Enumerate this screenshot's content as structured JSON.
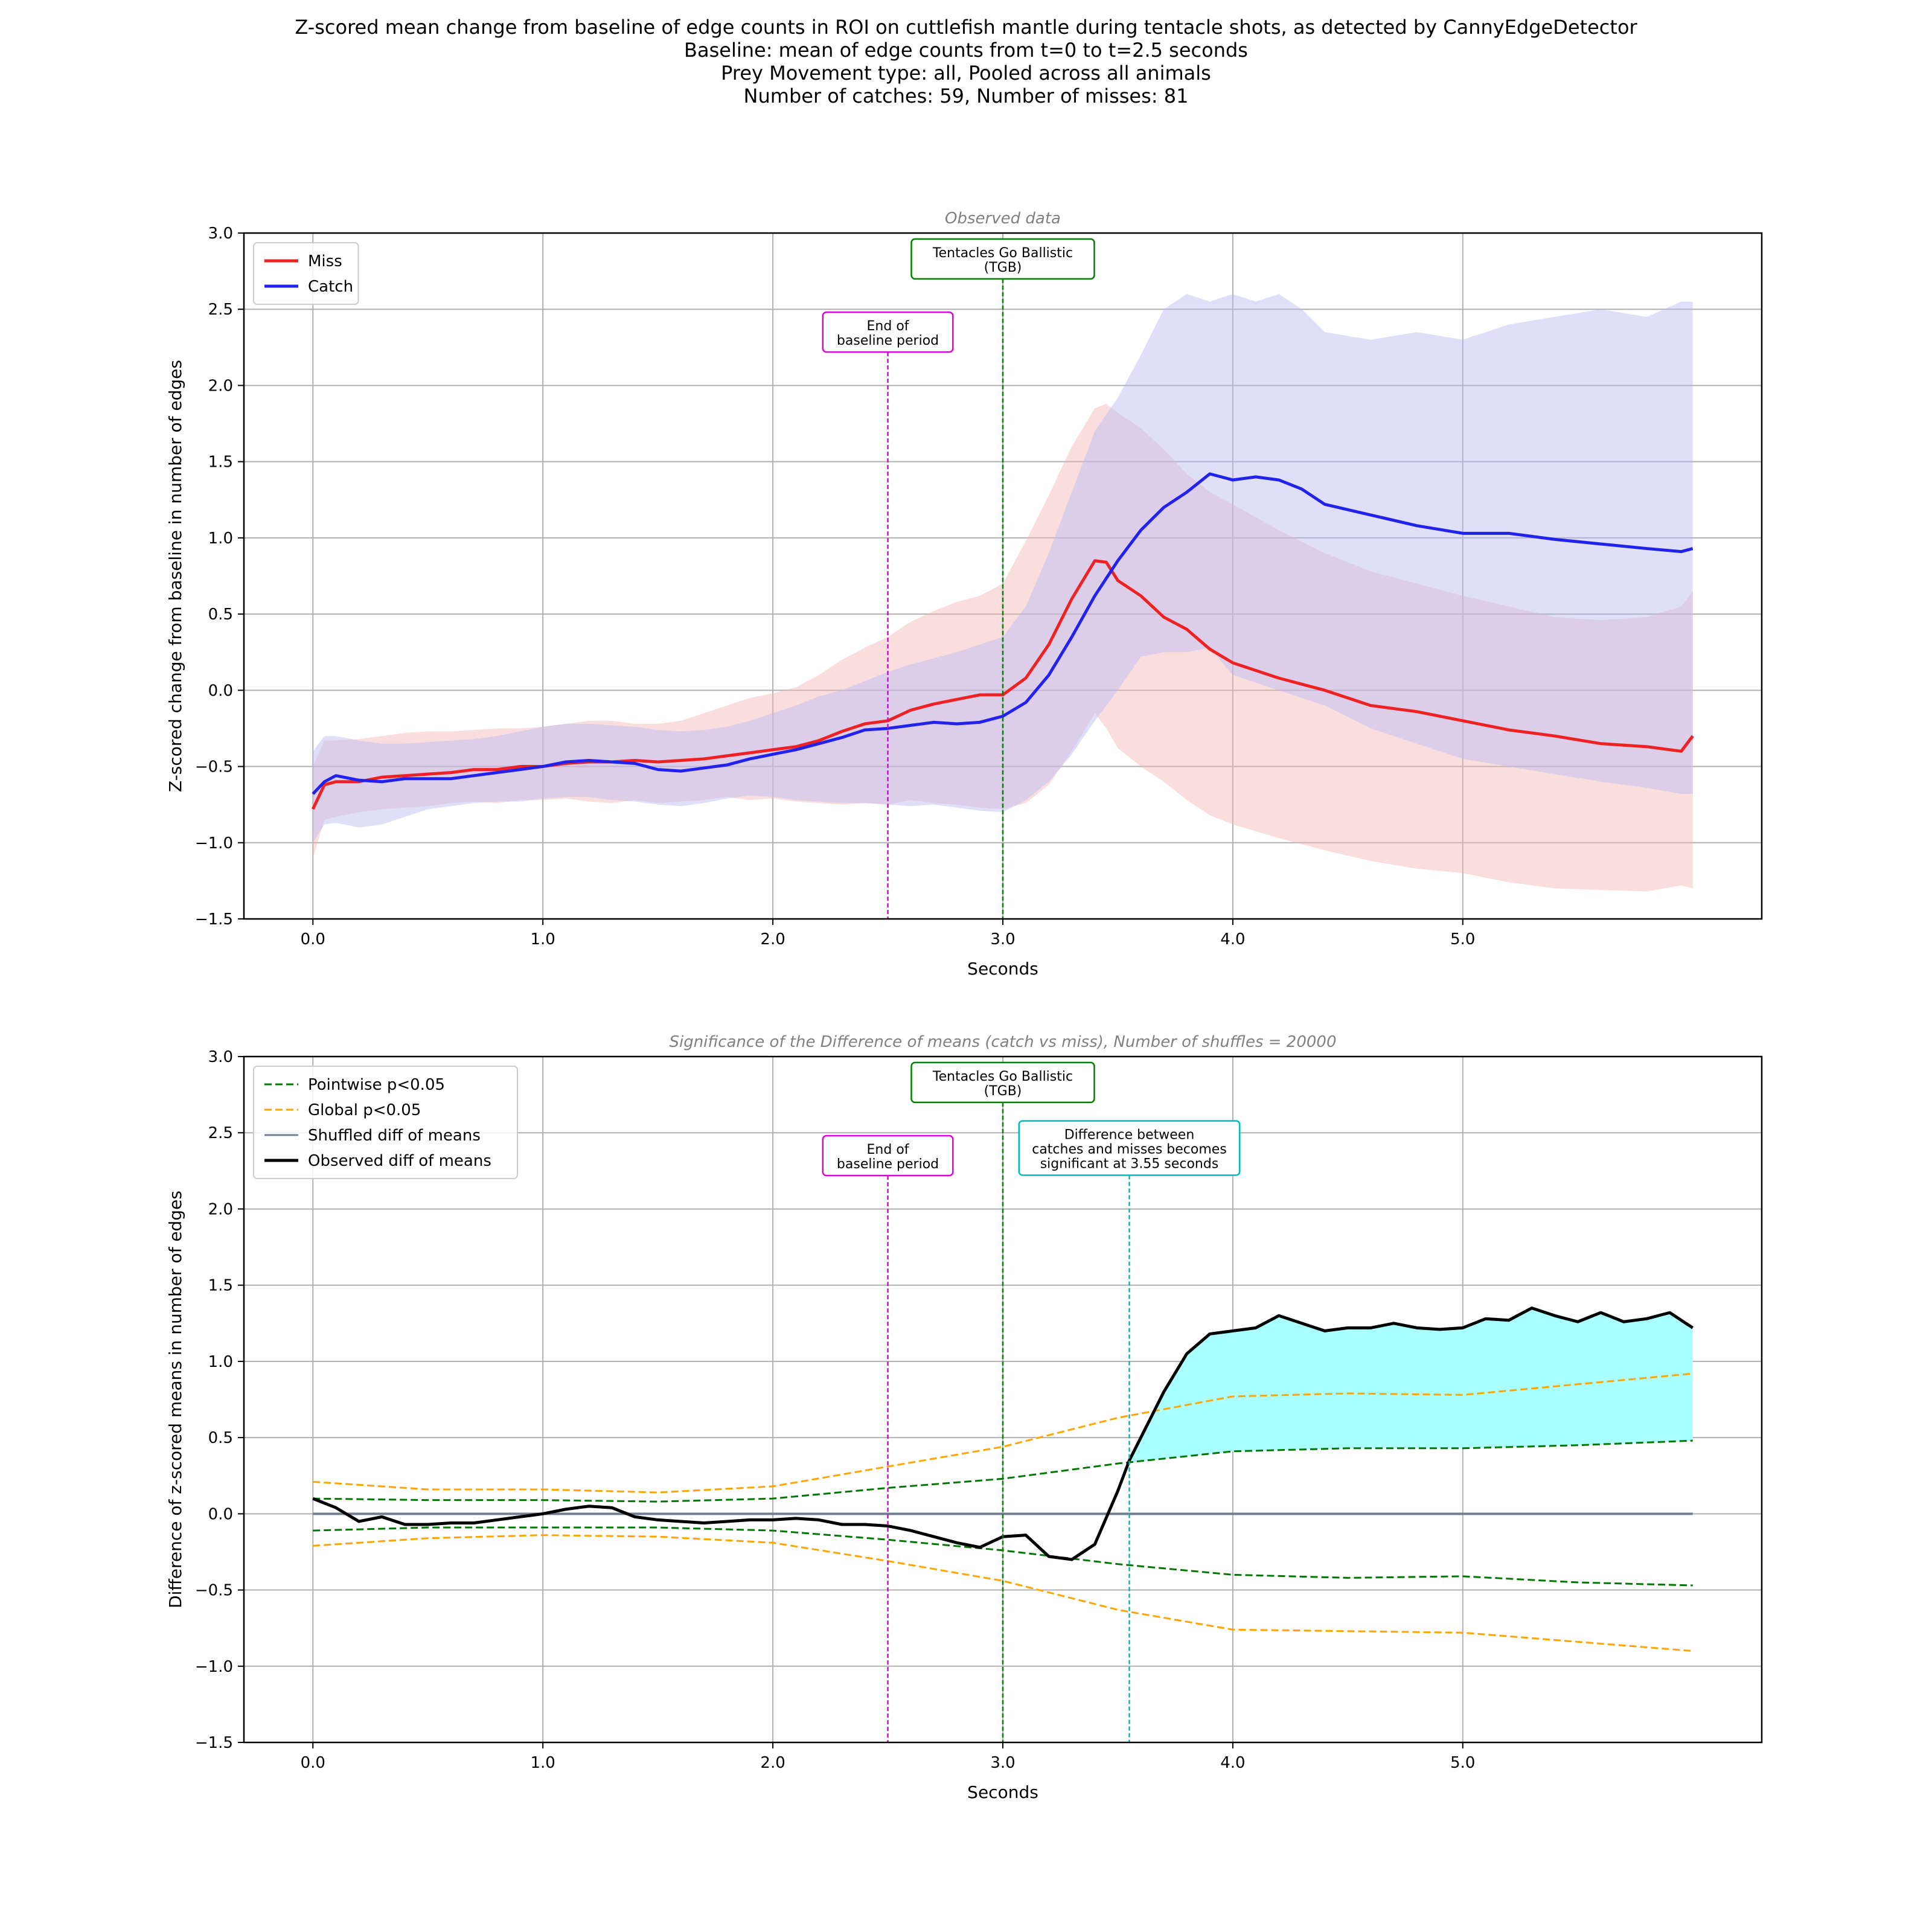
{
  "figure": {
    "title_lines": [
      "Z-scored mean change from baseline of edge counts in ROI on cuttlefish mantle during tentacle shots, as detected by CannyEdgeDetector",
      "Baseline: mean of edge counts from t=0 to t=2.5 seconds",
      "Prey Movement type: all, Pooled across all animals",
      "Number of catches: 59, Number of misses: 81"
    ]
  },
  "colors": {
    "miss": "#ee2222",
    "miss_band": "#f5b5b5",
    "catch": "#2222ee",
    "catch_band": "#b8b8f5",
    "pointwise": "#007700",
    "global": "#ffa500",
    "shuffled": "#708090",
    "observed": "#000000",
    "baseline_marker": "#dd00dd",
    "tgb_marker": "#008000",
    "significance_marker": "#00bbbb",
    "significant_fill": "#aaffff"
  },
  "chart_data": [
    {
      "type": "line",
      "title": "Observed data",
      "xlabel": "Seconds",
      "ylabel": "Z-scored change from baseline in number of edges",
      "xlim": [
        -0.3,
        6.3
      ],
      "ylim": [
        -1.5,
        3.0
      ],
      "xticks": [
        0.0,
        1.0,
        2.0,
        3.0,
        4.0,
        5.0
      ],
      "xtick_labels": [
        "0.0",
        "1.0",
        "2.0",
        "3.0",
        "4.0",
        "5.0"
      ],
      "yticks": [
        -1.5,
        -1.0,
        -0.5,
        0.0,
        0.5,
        1.0,
        1.5,
        2.0,
        2.5,
        3.0
      ],
      "ytick_labels": [
        "−1.5",
        "−1.0",
        "−0.5",
        "0.0",
        "0.5",
        "1.0",
        "1.5",
        "2.0",
        "2.5",
        "3.0"
      ],
      "grid": true,
      "legend_position": "top-left",
      "series": [
        {
          "name": "Miss",
          "color_key": "miss",
          "band_color_key": "miss_band",
          "x": [
            0.0,
            0.05,
            0.1,
            0.2,
            0.3,
            0.4,
            0.5,
            0.6,
            0.7,
            0.8,
            0.9,
            1.0,
            1.1,
            1.2,
            1.3,
            1.4,
            1.5,
            1.6,
            1.7,
            1.8,
            1.9,
            2.0,
            2.1,
            2.2,
            2.3,
            2.4,
            2.5,
            2.6,
            2.7,
            2.8,
            2.9,
            3.0,
            3.1,
            3.2,
            3.3,
            3.4,
            3.45,
            3.5,
            3.6,
            3.7,
            3.8,
            3.9,
            4.0,
            4.2,
            4.4,
            4.6,
            4.8,
            5.0,
            5.2,
            5.4,
            5.6,
            5.8,
            5.95,
            6.0
          ],
          "y": [
            -0.78,
            -0.62,
            -0.6,
            -0.6,
            -0.57,
            -0.56,
            -0.55,
            -0.54,
            -0.52,
            -0.52,
            -0.5,
            -0.5,
            -0.48,
            -0.47,
            -0.47,
            -0.46,
            -0.47,
            -0.46,
            -0.45,
            -0.43,
            -0.41,
            -0.39,
            -0.37,
            -0.33,
            -0.27,
            -0.22,
            -0.2,
            -0.13,
            -0.09,
            -0.06,
            -0.03,
            -0.03,
            0.08,
            0.3,
            0.6,
            0.85,
            0.84,
            0.72,
            0.62,
            0.48,
            0.4,
            0.27,
            0.18,
            0.08,
            0.0,
            -0.1,
            -0.14,
            -0.2,
            -0.26,
            -0.3,
            -0.35,
            -0.37,
            -0.4,
            -0.3
          ],
          "lower": [
            -1.1,
            -0.85,
            -0.83,
            -0.8,
            -0.78,
            -0.77,
            -0.76,
            -0.74,
            -0.73,
            -0.74,
            -0.72,
            -0.72,
            -0.71,
            -0.73,
            -0.74,
            -0.72,
            -0.74,
            -0.73,
            -0.72,
            -0.7,
            -0.72,
            -0.71,
            -0.73,
            -0.74,
            -0.75,
            -0.74,
            -0.75,
            -0.72,
            -0.74,
            -0.75,
            -0.77,
            -0.78,
            -0.74,
            -0.62,
            -0.4,
            -0.15,
            -0.25,
            -0.38,
            -0.5,
            -0.6,
            -0.72,
            -0.82,
            -0.88,
            -0.97,
            -1.05,
            -1.12,
            -1.17,
            -1.2,
            -1.26,
            -1.3,
            -1.31,
            -1.32,
            -1.28,
            -1.3
          ],
          "upper": [
            -0.5,
            -0.33,
            -0.33,
            -0.32,
            -0.3,
            -0.28,
            -0.27,
            -0.27,
            -0.26,
            -0.25,
            -0.25,
            -0.24,
            -0.22,
            -0.2,
            -0.2,
            -0.22,
            -0.22,
            -0.2,
            -0.15,
            -0.1,
            -0.05,
            -0.02,
            0.02,
            0.1,
            0.2,
            0.28,
            0.35,
            0.45,
            0.52,
            0.58,
            0.62,
            0.7,
            0.98,
            1.28,
            1.6,
            1.85,
            1.88,
            1.82,
            1.72,
            1.58,
            1.42,
            1.3,
            1.22,
            1.05,
            0.9,
            0.78,
            0.7,
            0.62,
            0.55,
            0.48,
            0.46,
            0.48,
            0.55,
            0.65
          ]
        },
        {
          "name": "Catch",
          "color_key": "catch",
          "band_color_key": "catch_band",
          "x": [
            0.0,
            0.05,
            0.1,
            0.2,
            0.3,
            0.4,
            0.5,
            0.6,
            0.7,
            0.8,
            0.9,
            1.0,
            1.1,
            1.2,
            1.3,
            1.4,
            1.5,
            1.6,
            1.7,
            1.8,
            1.9,
            2.0,
            2.1,
            2.2,
            2.3,
            2.4,
            2.5,
            2.6,
            2.7,
            2.8,
            2.9,
            3.0,
            3.1,
            3.2,
            3.3,
            3.4,
            3.5,
            3.6,
            3.7,
            3.8,
            3.9,
            4.0,
            4.1,
            4.2,
            4.3,
            4.4,
            4.6,
            4.8,
            5.0,
            5.2,
            5.4,
            5.6,
            5.8,
            5.95,
            6.0
          ],
          "y": [
            -0.68,
            -0.6,
            -0.56,
            -0.59,
            -0.6,
            -0.58,
            -0.58,
            -0.58,
            -0.56,
            -0.54,
            -0.52,
            -0.5,
            -0.47,
            -0.46,
            -0.47,
            -0.48,
            -0.52,
            -0.53,
            -0.51,
            -0.49,
            -0.45,
            -0.42,
            -0.39,
            -0.35,
            -0.31,
            -0.26,
            -0.25,
            -0.23,
            -0.21,
            -0.22,
            -0.21,
            -0.17,
            -0.08,
            0.1,
            0.35,
            0.62,
            0.85,
            1.05,
            1.2,
            1.3,
            1.42,
            1.38,
            1.4,
            1.38,
            1.32,
            1.22,
            1.15,
            1.08,
            1.03,
            1.03,
            0.99,
            0.96,
            0.93,
            0.91,
            0.93
          ],
          "lower": [
            -1.0,
            -0.88,
            -0.87,
            -0.9,
            -0.88,
            -0.83,
            -0.78,
            -0.76,
            -0.74,
            -0.73,
            -0.73,
            -0.71,
            -0.7,
            -0.7,
            -0.72,
            -0.73,
            -0.75,
            -0.76,
            -0.74,
            -0.71,
            -0.69,
            -0.7,
            -0.72,
            -0.73,
            -0.74,
            -0.74,
            -0.75,
            -0.76,
            -0.75,
            -0.77,
            -0.79,
            -0.8,
            -0.72,
            -0.6,
            -0.42,
            -0.2,
            0.0,
            0.22,
            0.25,
            0.25,
            0.28,
            0.1,
            0.05,
            0.0,
            -0.05,
            -0.1,
            -0.25,
            -0.35,
            -0.45,
            -0.5,
            -0.55,
            -0.6,
            -0.64,
            -0.68,
            -0.68
          ],
          "upper": [
            -0.4,
            -0.3,
            -0.3,
            -0.33,
            -0.35,
            -0.35,
            -0.34,
            -0.33,
            -0.32,
            -0.3,
            -0.27,
            -0.24,
            -0.22,
            -0.22,
            -0.23,
            -0.24,
            -0.26,
            -0.27,
            -0.26,
            -0.24,
            -0.2,
            -0.15,
            -0.1,
            -0.04,
            0.0,
            0.06,
            0.12,
            0.17,
            0.21,
            0.25,
            0.3,
            0.35,
            0.55,
            0.9,
            1.3,
            1.7,
            1.92,
            2.2,
            2.5,
            2.6,
            2.55,
            2.6,
            2.55,
            2.6,
            2.5,
            2.35,
            2.3,
            2.35,
            2.3,
            2.4,
            2.45,
            2.5,
            2.45,
            2.55,
            2.55
          ]
        }
      ],
      "markers": [
        {
          "x": 2.5,
          "label_lines": [
            "End of",
            "baseline period"
          ],
          "color_key": "baseline_marker",
          "label_y": 2.35
        },
        {
          "x": 3.0,
          "label_lines": [
            "Tentacles Go Ballistic",
            "(TGB)"
          ],
          "color_key": "tgb_marker",
          "label_y": 2.83
        }
      ]
    },
    {
      "type": "line",
      "title": "Significance of the Difference of means (catch vs miss), Number of shuffles = 20000",
      "xlabel": "Seconds",
      "ylabel": "Difference of z-scored means in number of edges",
      "xlim": [
        -0.3,
        6.3
      ],
      "ylim": [
        -1.5,
        3.0
      ],
      "xticks": [
        0.0,
        1.0,
        2.0,
        3.0,
        4.0,
        5.0
      ],
      "xtick_labels": [
        "0.0",
        "1.0",
        "2.0",
        "3.0",
        "4.0",
        "5.0"
      ],
      "yticks": [
        -1.5,
        -1.0,
        -0.5,
        0.0,
        0.5,
        1.0,
        1.5,
        2.0,
        2.5,
        3.0
      ],
      "ytick_labels": [
        "−1.5",
        "−1.0",
        "−0.5",
        "0.0",
        "0.5",
        "1.0",
        "1.5",
        "2.0",
        "2.5",
        "3.0"
      ],
      "grid": true,
      "legend_position": "top-left",
      "series": [
        {
          "name": "Pointwise p<0.05",
          "color_key": "pointwise",
          "dashed": true,
          "x": [
            0.0,
            0.5,
            1.0,
            1.5,
            2.0,
            2.5,
            3.0,
            3.5,
            4.0,
            4.5,
            5.0,
            5.5,
            6.0
          ],
          "upper": [
            0.1,
            0.09,
            0.09,
            0.08,
            0.1,
            0.17,
            0.23,
            0.33,
            0.41,
            0.43,
            0.43,
            0.45,
            0.48
          ],
          "lower": [
            -0.11,
            -0.09,
            -0.09,
            -0.09,
            -0.11,
            -0.17,
            -0.24,
            -0.33,
            -0.4,
            -0.42,
            -0.41,
            -0.45,
            -0.47
          ]
        },
        {
          "name": "Global p<0.05",
          "color_key": "global",
          "dashed": true,
          "x": [
            0.0,
            0.5,
            1.0,
            1.5,
            2.0,
            2.5,
            3.0,
            3.5,
            4.0,
            4.5,
            5.0,
            5.5,
            6.0
          ],
          "upper": [
            0.21,
            0.16,
            0.16,
            0.14,
            0.18,
            0.31,
            0.44,
            0.63,
            0.77,
            0.79,
            0.78,
            0.85,
            0.92
          ],
          "lower": [
            -0.21,
            -0.16,
            -0.14,
            -0.15,
            -0.19,
            -0.31,
            -0.44,
            -0.63,
            -0.76,
            -0.77,
            -0.78,
            -0.84,
            -0.9
          ]
        },
        {
          "name": "Shuffled diff of means",
          "color_key": "shuffled",
          "x": [
            0.0,
            6.0
          ],
          "y": [
            0.0,
            0.0
          ]
        },
        {
          "name": "Observed diff of means",
          "color_key": "observed",
          "x": [
            0.0,
            0.1,
            0.2,
            0.3,
            0.4,
            0.5,
            0.6,
            0.7,
            0.8,
            0.9,
            1.0,
            1.1,
            1.2,
            1.3,
            1.4,
            1.5,
            1.6,
            1.7,
            1.8,
            1.9,
            2.0,
            2.1,
            2.2,
            2.3,
            2.4,
            2.5,
            2.6,
            2.7,
            2.8,
            2.9,
            3.0,
            3.1,
            3.2,
            3.3,
            3.4,
            3.5,
            3.55,
            3.6,
            3.7,
            3.8,
            3.9,
            4.0,
            4.1,
            4.2,
            4.3,
            4.4,
            4.5,
            4.6,
            4.7,
            4.8,
            4.9,
            5.0,
            5.1,
            5.2,
            5.3,
            5.4,
            5.5,
            5.6,
            5.7,
            5.8,
            5.9,
            6.0
          ],
          "y": [
            0.1,
            0.04,
            -0.05,
            -0.02,
            -0.07,
            -0.07,
            -0.06,
            -0.06,
            -0.04,
            -0.02,
            0.0,
            0.03,
            0.05,
            0.04,
            -0.02,
            -0.04,
            -0.05,
            -0.06,
            -0.05,
            -0.04,
            -0.04,
            -0.03,
            -0.04,
            -0.07,
            -0.07,
            -0.08,
            -0.11,
            -0.15,
            -0.19,
            -0.22,
            -0.15,
            -0.14,
            -0.28,
            -0.3,
            -0.2,
            0.15,
            0.35,
            0.5,
            0.8,
            1.05,
            1.18,
            1.2,
            1.22,
            1.3,
            1.25,
            1.2,
            1.22,
            1.22,
            1.25,
            1.22,
            1.21,
            1.22,
            1.28,
            1.27,
            1.35,
            1.3,
            1.26,
            1.32,
            1.26,
            1.28,
            1.32,
            1.22
          ]
        }
      ],
      "significance": {
        "start": 3.55,
        "fill_color_key": "significant_fill"
      },
      "markers": [
        {
          "x": 2.5,
          "label_lines": [
            "End of",
            "baseline period"
          ],
          "color_key": "baseline_marker",
          "label_y": 2.35
        },
        {
          "x": 3.0,
          "label_lines": [
            "Tentacles Go Ballistic",
            "(TGB)"
          ],
          "color_key": "tgb_marker",
          "label_y": 2.83
        },
        {
          "x": 3.55,
          "label_lines": [
            "Difference between",
            "catches and misses becomes",
            "significant at 3.55 seconds"
          ],
          "color_key": "significance_marker",
          "label_y": 2.4
        }
      ]
    }
  ]
}
